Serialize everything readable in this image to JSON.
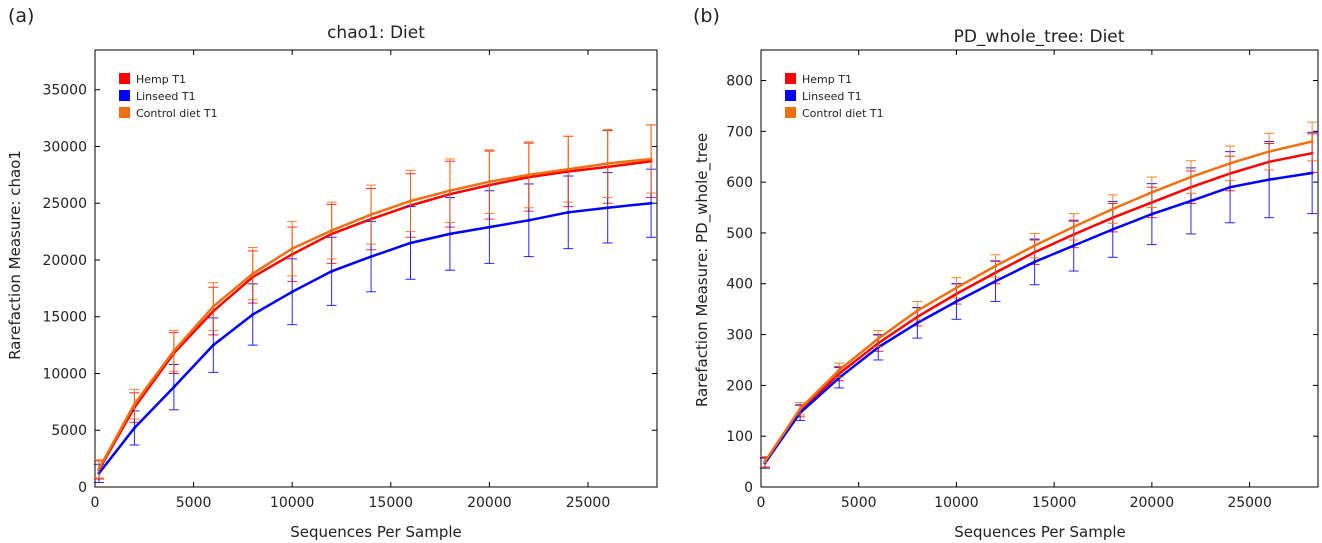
{
  "chart_data": [
    {
      "type": "line",
      "panel_label": "(a)",
      "title": "chao1: Diet",
      "xlabel": "Sequences Per Sample",
      "ylabel": "Rarefaction Measure: chao1",
      "xlim": [
        0,
        28500
      ],
      "ylim": [
        0,
        38500
      ],
      "xticks": [
        0,
        5000,
        10000,
        15000,
        20000,
        25000
      ],
      "yticks": [
        0,
        5000,
        10000,
        15000,
        20000,
        25000,
        30000,
        35000
      ],
      "grid": false,
      "legend_position": "top-left",
      "x": [
        200,
        2000,
        4000,
        6000,
        8000,
        10000,
        12000,
        14000,
        16000,
        18000,
        20000,
        22000,
        24000,
        26000,
        28200
      ],
      "series": [
        {
          "name": "Hemp T1",
          "color": "#ff0000",
          "values": [
            1500,
            7000,
            11800,
            15500,
            18500,
            20500,
            22300,
            23600,
            24800,
            25800,
            26600,
            27300,
            27800,
            28200,
            28700
          ],
          "errors": [
            800,
            1300,
            1800,
            2100,
            2300,
            2400,
            2600,
            2700,
            2800,
            2900,
            3000,
            3000,
            3100,
            3200,
            3200
          ]
        },
        {
          "name": "Linseed T1",
          "color": "#0000ff",
          "values": [
            1200,
            5200,
            8800,
            12500,
            15200,
            17200,
            19000,
            20300,
            21500,
            22300,
            22900,
            23500,
            24200,
            24600,
            25000
          ],
          "errors": [
            800,
            1500,
            2000,
            2400,
            2700,
            2900,
            3000,
            3100,
            3200,
            3200,
            3200,
            3200,
            3200,
            3100,
            3000
          ]
        },
        {
          "name": "Control diet T1",
          "color": "#f07010",
          "values": [
            1600,
            7300,
            12000,
            15900,
            18800,
            21000,
            22600,
            24000,
            25200,
            26100,
            26900,
            27500,
            28000,
            28500,
            28900
          ],
          "errors": [
            800,
            1300,
            1800,
            2100,
            2300,
            2400,
            2500,
            2600,
            2700,
            2800,
            2800,
            2900,
            2900,
            3000,
            3000
          ]
        }
      ]
    },
    {
      "type": "line",
      "panel_label": "(b)",
      "title": "PD_whole_tree: Diet",
      "xlabel": "Sequences Per Sample",
      "ylabel": "Rarefaction Measure: PD_whole_tree",
      "xlim": [
        0,
        28500
      ],
      "ylim": [
        0,
        860
      ],
      "xticks": [
        0,
        5000,
        10000,
        15000,
        20000,
        25000
      ],
      "yticks": [
        0,
        100,
        200,
        300,
        400,
        500,
        600,
        700,
        800
      ],
      "grid": false,
      "legend_position": "top-left",
      "x": [
        200,
        2000,
        4000,
        6000,
        8000,
        10000,
        12000,
        14000,
        16000,
        18000,
        20000,
        22000,
        24000,
        26000,
        28200
      ],
      "series": [
        {
          "name": "Hemp T1",
          "color": "#ff0000",
          "values": [
            48,
            150,
            223,
            283,
            335,
            380,
            422,
            462,
            497,
            530,
            560,
            590,
            617,
            640,
            657
          ],
          "errors": [
            10,
            12,
            14,
            16,
            18,
            20,
            22,
            24,
            26,
            28,
            30,
            32,
            34,
            36,
            38
          ]
        },
        {
          "name": "Linseed T1",
          "color": "#0000ff",
          "values": [
            47,
            146,
            215,
            275,
            323,
            365,
            405,
            443,
            475,
            507,
            537,
            563,
            590,
            605,
            618
          ],
          "errors": [
            10,
            15,
            20,
            25,
            30,
            35,
            40,
            45,
            50,
            55,
            60,
            65,
            70,
            75,
            80
          ]
        },
        {
          "name": "Control diet T1",
          "color": "#f07010",
          "values": [
            50,
            154,
            230,
            292,
            347,
            392,
            435,
            475,
            512,
            547,
            580,
            610,
            637,
            660,
            680
          ],
          "errors": [
            10,
            12,
            14,
            16,
            18,
            20,
            22,
            24,
            26,
            28,
            30,
            32,
            34,
            36,
            38
          ]
        }
      ]
    }
  ]
}
